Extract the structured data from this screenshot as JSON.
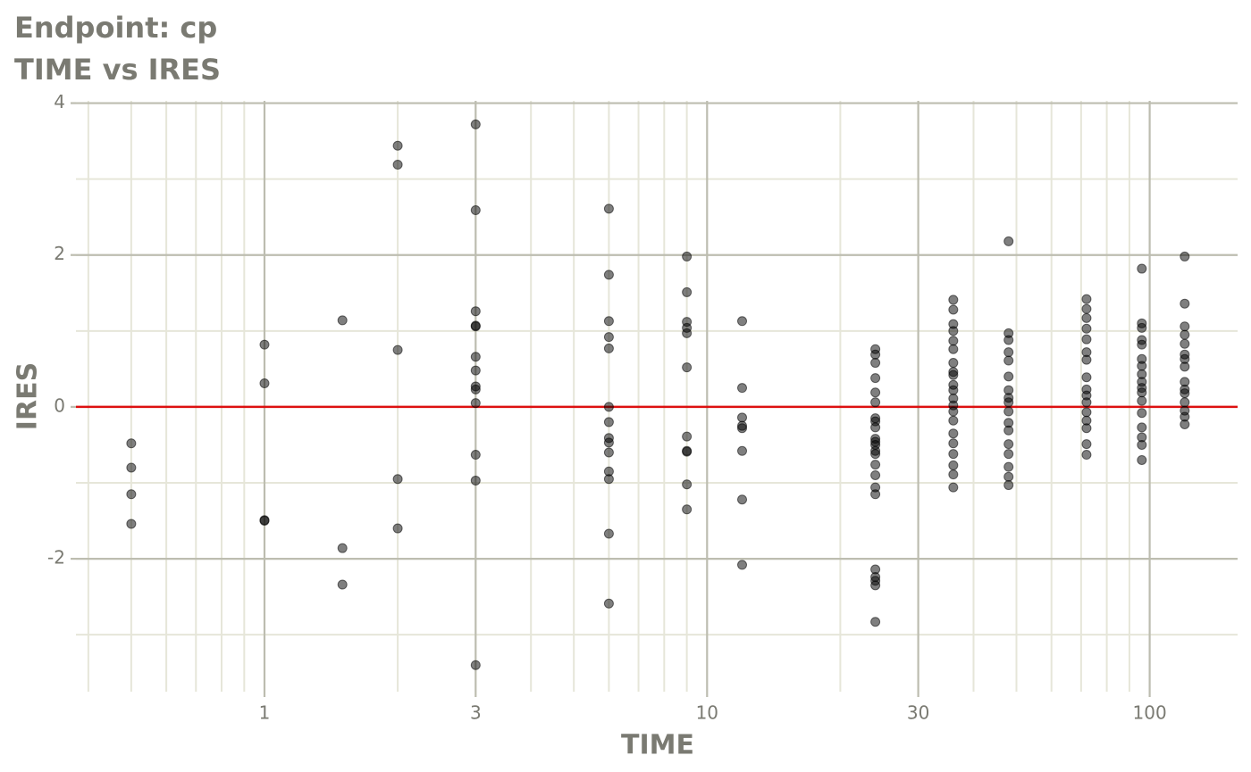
{
  "chart_data": {
    "type": "scatter",
    "title": "Endpoint:  cp",
    "subtitle": "TIME vs IRES",
    "x_label": "TIME",
    "y_label": "IRES",
    "log_x": true,
    "grid": true,
    "xlim": [
      0.375,
      158
    ],
    "ylim": [
      -3.75,
      4.03
    ],
    "xticks": [
      1,
      3,
      10,
      30,
      100
    ],
    "yticks": [
      -2,
      0,
      2,
      4
    ],
    "xminor": [
      0.4,
      0.5,
      0.6,
      0.7,
      0.8,
      0.9,
      2,
      4,
      5,
      6,
      7,
      8,
      9,
      20,
      40,
      50,
      60,
      70,
      80,
      90
    ],
    "yminor": [
      -3,
      -1,
      1,
      3
    ],
    "hline": 0,
    "hline_color": "#dd1111",
    "color": "#000000",
    "x": [
      0.5,
      0.5,
      0.5,
      0.5,
      1,
      1,
      1,
      1,
      1.5,
      1.5,
      1.5,
      2,
      2,
      2,
      2,
      2,
      3,
      3,
      3,
      3,
      3,
      3,
      3,
      3,
      3,
      3,
      3,
      3,
      3,
      6,
      6,
      6,
      6,
      6,
      6,
      6,
      6,
      6,
      6,
      6,
      6,
      6,
      6,
      9,
      9,
      9,
      9,
      9,
      9,
      9,
      9,
      9,
      9,
      9,
      12,
      12,
      12,
      12,
      12,
      12,
      12,
      12,
      24,
      24,
      24,
      24,
      24,
      24,
      24,
      24,
      24,
      24,
      24,
      24,
      24,
      24,
      24,
      24,
      24,
      24,
      24,
      24,
      24,
      24,
      24,
      36,
      36,
      36,
      36,
      36,
      36,
      36,
      36,
      36,
      36,
      36,
      36,
      36,
      36,
      36,
      36,
      36,
      36,
      36,
      36,
      36,
      48,
      48,
      48,
      48,
      48,
      48,
      48,
      48,
      48,
      48,
      48,
      48,
      48,
      48,
      48,
      48,
      48,
      72,
      72,
      72,
      72,
      72,
      72,
      72,
      72,
      72,
      72,
      72,
      72,
      72,
      72,
      72,
      72,
      96,
      96,
      96,
      96,
      96,
      96,
      96,
      96,
      96,
      96,
      96,
      96,
      96,
      96,
      96,
      96,
      96,
      120,
      120,
      120,
      120,
      120,
      120,
      120,
      120,
      120,
      120,
      120,
      120,
      120,
      120,
      120
    ],
    "values": [
      -0.48,
      -0.8,
      -1.15,
      -1.54,
      0.82,
      0.31,
      -1.49,
      -1.5,
      1.14,
      -1.86,
      -2.34,
      3.44,
      3.19,
      0.75,
      -0.95,
      -1.6,
      3.72,
      2.59,
      1.26,
      1.07,
      1.06,
      0.66,
      0.48,
      0.27,
      0.23,
      0.05,
      -0.63,
      -0.97,
      -3.4,
      2.61,
      1.74,
      1.13,
      0.92,
      0.77,
      0,
      -0.2,
      -0.41,
      -0.47,
      -0.6,
      -0.85,
      -0.95,
      -1.67,
      -2.59,
      1.98,
      1.51,
      1.12,
      1.04,
      0.97,
      0.52,
      -0.39,
      -0.58,
      -0.59,
      -1.02,
      -1.35,
      1.13,
      0.25,
      -0.14,
      -0.25,
      -0.28,
      -0.58,
      -1.22,
      -2.08,
      0.76,
      0.69,
      0.58,
      0.38,
      0.19,
      0.06,
      -0.15,
      -0.19,
      -0.27,
      -0.42,
      -0.46,
      -0.5,
      -0.58,
      -0.62,
      -0.76,
      -0.9,
      -1.06,
      -1.15,
      -2.14,
      -2.24,
      -2.29,
      -2.35,
      -2.83,
      1.41,
      1.28,
      1.09,
      1.0,
      0.87,
      0.76,
      0.58,
      0.46,
      0.42,
      0.29,
      0.22,
      0.11,
      0.02,
      -0.06,
      -0.18,
      -0.35,
      -0.48,
      -0.62,
      -0.77,
      -0.89,
      -1.06,
      2.18,
      0.97,
      0.88,
      0.72,
      0.61,
      0.4,
      0.22,
      0.12,
      0.06,
      -0.06,
      -0.21,
      -0.31,
      -0.49,
      -0.62,
      -0.79,
      -0.92,
      -1.03,
      1.42,
      1.29,
      1.17,
      1.03,
      0.89,
      0.72,
      0.62,
      0.39,
      0.23,
      0.15,
      0.06,
      -0.07,
      -0.18,
      -0.28,
      -0.49,
      -0.63,
      1.82,
      1.1,
      1.04,
      0.88,
      0.82,
      0.63,
      0.54,
      0.43,
      0.33,
      0.25,
      0.19,
      0.08,
      -0.08,
      -0.27,
      -0.4,
      -0.5,
      -0.7,
      1.98,
      1.36,
      1.06,
      0.95,
      0.83,
      0.69,
      0.63,
      0.53,
      0.33,
      0.23,
      0.18,
      0.06,
      -0.05,
      -0.13,
      -0.23
    ]
  }
}
